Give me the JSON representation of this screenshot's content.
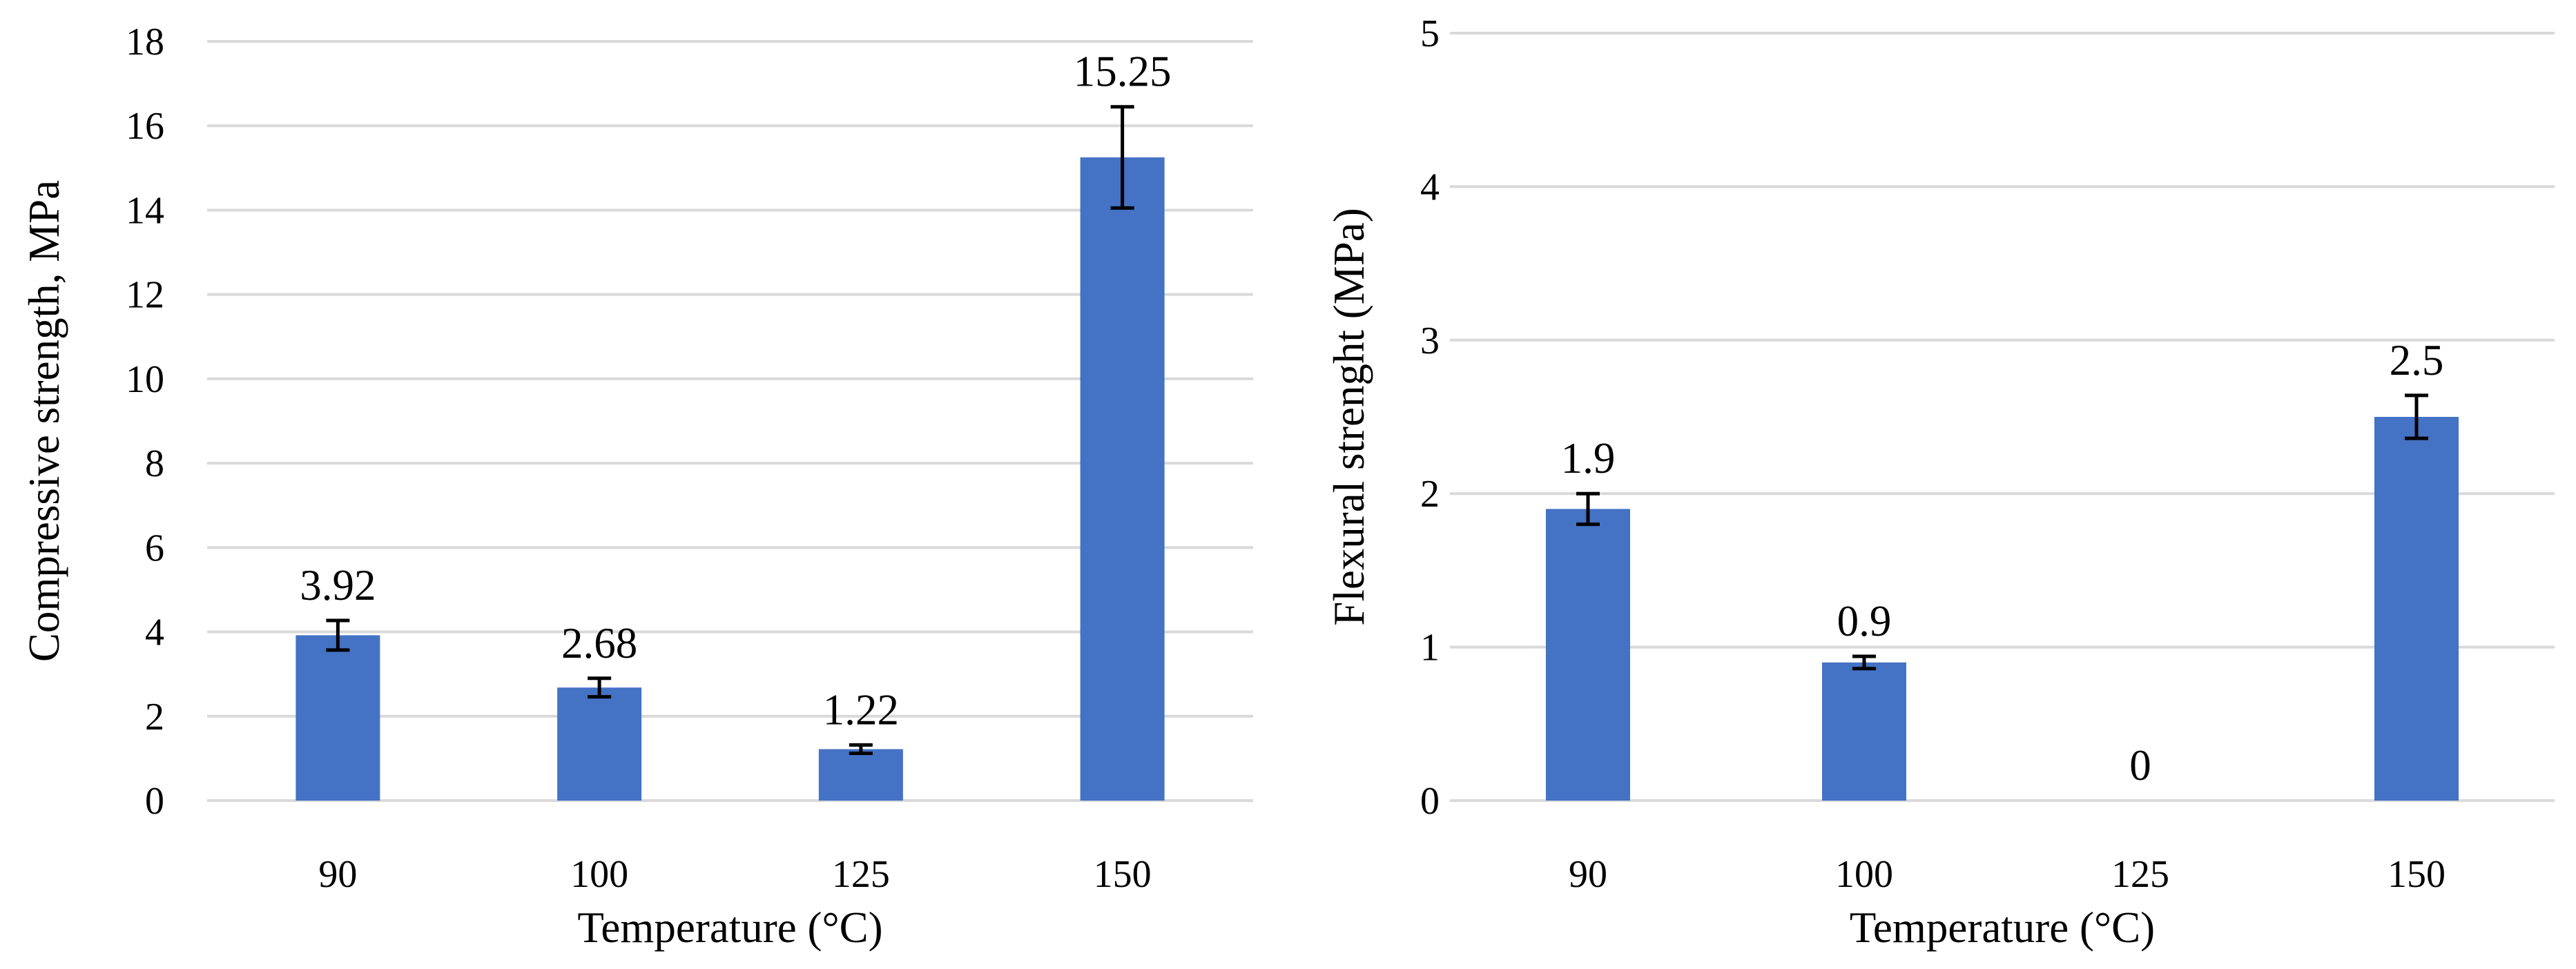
{
  "chart_data": [
    {
      "type": "bar",
      "title": "",
      "xlabel": "Temperature (°C)",
      "ylabel": "Compressive strength, MPa",
      "categories": [
        "90",
        "100",
        "125",
        "150"
      ],
      "values": [
        3.92,
        2.68,
        1.22,
        15.25
      ],
      "data_labels": [
        "3.92",
        "2.68",
        "1.22",
        "15.25"
      ],
      "error": [
        0.35,
        0.22,
        0.1,
        1.2
      ],
      "ylim": [
        0,
        18
      ],
      "yticks": [
        0,
        2,
        4,
        6,
        8,
        10,
        12,
        14,
        16,
        18
      ],
      "grid": true,
      "legend": "none",
      "bar_color": "#4472c4"
    },
    {
      "type": "bar",
      "title": "",
      "xlabel": "Temperature (°C)",
      "ylabel": "Flexural strenght (MPa)",
      "categories": [
        "90",
        "100",
        "125",
        "150"
      ],
      "values": [
        1.9,
        0.9,
        0,
        2.5
      ],
      "data_labels": [
        "1.9",
        "0.9",
        "0",
        "2.5"
      ],
      "error": [
        0.1,
        0.04,
        0,
        0.14
      ],
      "ylim": [
        0,
        5
      ],
      "yticks": [
        0,
        1,
        2,
        3,
        4,
        5
      ],
      "grid": true,
      "legend": "none",
      "bar_color": "#4472c4"
    }
  ]
}
